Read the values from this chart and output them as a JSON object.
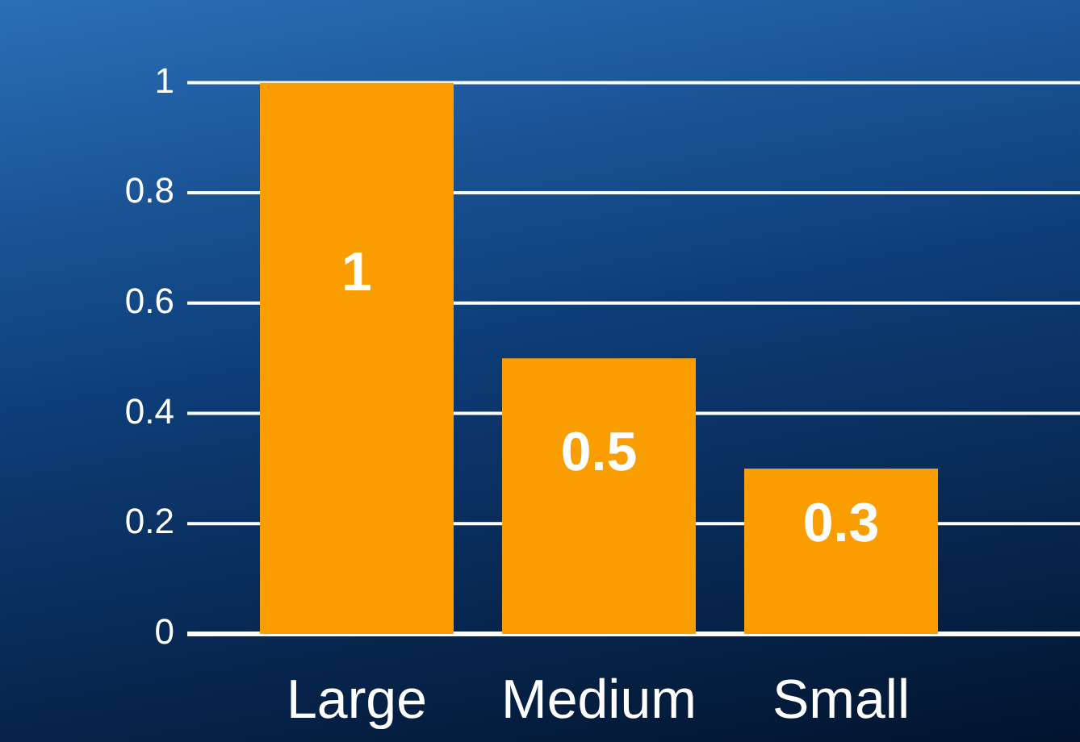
{
  "chart_data": {
    "type": "bar",
    "categories": [
      "Large",
      "Medium",
      "Small"
    ],
    "values": [
      1,
      0.5,
      0.3
    ],
    "color": "#f99d00",
    "ylim": [
      0,
      1
    ],
    "yticks": [
      0,
      0.2,
      0.4,
      0.6,
      0.8,
      1
    ],
    "grid": "y",
    "data_labels": true
  }
}
